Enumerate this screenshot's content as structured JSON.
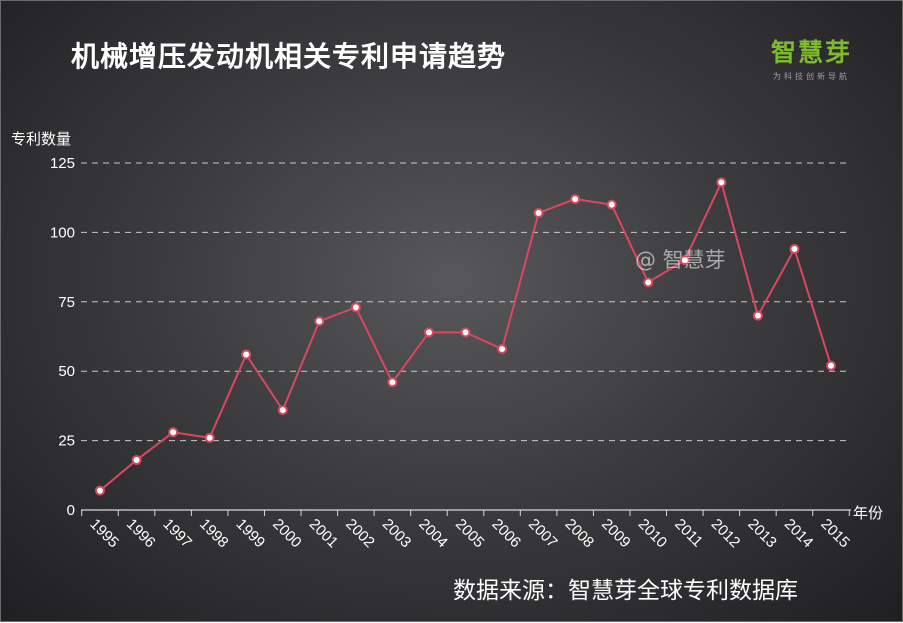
{
  "header": {
    "title": "机械增压发动机相关专利申请趋势"
  },
  "logo": {
    "name": "智慧芽",
    "tagline": "为科技创新导航",
    "color": "#7dbb2d"
  },
  "watermark": "@ 智慧芽",
  "source_note": "数据来源：智慧芽全球专利数据库",
  "chart_data": {
    "type": "line",
    "ylabel": "专利数量",
    "xlabel": "年份",
    "categories": [
      "1995",
      "1996",
      "1997",
      "1998",
      "1999",
      "2000",
      "2001",
      "2002",
      "2003",
      "2004",
      "2005",
      "2006",
      "2007",
      "2008",
      "2009",
      "2010",
      "2011",
      "2012",
      "2013",
      "2014",
      "2015"
    ],
    "values": [
      7,
      18,
      28,
      26,
      56,
      36,
      68,
      73,
      46,
      64,
      64,
      58,
      107,
      112,
      110,
      82,
      90,
      118,
      70,
      94,
      52
    ],
    "yticks": [
      "0",
      "25",
      "50",
      "75",
      "100",
      "125"
    ],
    "ylim": [
      0,
      125
    ],
    "grid": true,
    "line_color": "#d9485f",
    "marker_fill": "#ffffff"
  }
}
